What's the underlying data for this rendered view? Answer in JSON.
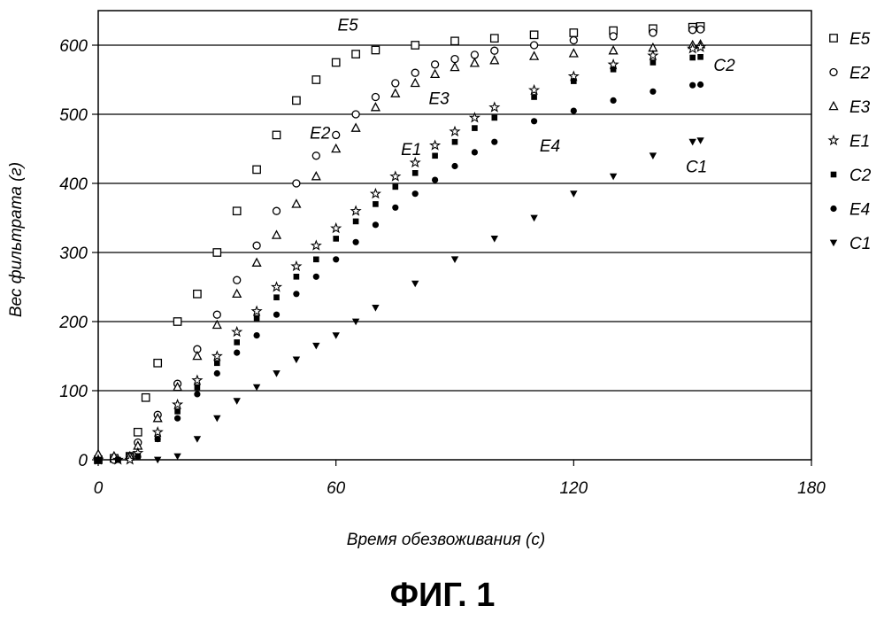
{
  "figure": {
    "caption": "ФИГ. 1"
  },
  "chart_data": {
    "type": "scatter",
    "title": "",
    "xlabel": "Время обезвоживания (с)",
    "ylabel": "Вес фильтрата (г)",
    "xlim": [
      0,
      180
    ],
    "ylim": [
      0,
      650
    ],
    "x_ticks": [
      "0",
      "60",
      "120",
      "180"
    ],
    "y_ticks": [
      "0",
      "100",
      "200",
      "300",
      "400",
      "500",
      "600"
    ],
    "grid": "horizontal",
    "legend_position": "right",
    "series": [
      {
        "name": "E5",
        "marker": "square-open",
        "color": "#000000",
        "points": [
          [
            0,
            0
          ],
          [
            4,
            2
          ],
          [
            8,
            5
          ],
          [
            10,
            40
          ],
          [
            12,
            90
          ],
          [
            15,
            140
          ],
          [
            20,
            200
          ],
          [
            25,
            240
          ],
          [
            30,
            300
          ],
          [
            35,
            360
          ],
          [
            40,
            420
          ],
          [
            45,
            470
          ],
          [
            50,
            520
          ],
          [
            55,
            550
          ],
          [
            60,
            575
          ],
          [
            65,
            587
          ],
          [
            70,
            593
          ],
          [
            80,
            600
          ],
          [
            90,
            606
          ],
          [
            100,
            610
          ],
          [
            110,
            615
          ],
          [
            120,
            618
          ],
          [
            130,
            621
          ],
          [
            140,
            624
          ],
          [
            150,
            626
          ],
          [
            152,
            627
          ]
        ]
      },
      {
        "name": "E2",
        "marker": "circle-open",
        "color": "#000000",
        "points": [
          [
            0,
            0
          ],
          [
            4,
            0
          ],
          [
            8,
            5
          ],
          [
            10,
            25
          ],
          [
            15,
            65
          ],
          [
            20,
            110
          ],
          [
            25,
            160
          ],
          [
            30,
            210
          ],
          [
            35,
            260
          ],
          [
            40,
            310
          ],
          [
            45,
            360
          ],
          [
            50,
            400
          ],
          [
            55,
            440
          ],
          [
            60,
            470
          ],
          [
            65,
            500
          ],
          [
            70,
            525
          ],
          [
            75,
            545
          ],
          [
            80,
            560
          ],
          [
            85,
            572
          ],
          [
            90,
            580
          ],
          [
            95,
            586
          ],
          [
            100,
            592
          ],
          [
            110,
            600
          ],
          [
            120,
            607
          ],
          [
            130,
            613
          ],
          [
            140,
            618
          ],
          [
            150,
            622
          ],
          [
            152,
            623
          ]
        ]
      },
      {
        "name": "E3",
        "marker": "triangle-open",
        "color": "#000000",
        "points": [
          [
            0,
            8
          ],
          [
            4,
            5
          ],
          [
            8,
            5
          ],
          [
            10,
            20
          ],
          [
            15,
            60
          ],
          [
            20,
            105
          ],
          [
            25,
            150
          ],
          [
            30,
            195
          ],
          [
            35,
            240
          ],
          [
            40,
            285
          ],
          [
            45,
            325
          ],
          [
            50,
            370
          ],
          [
            55,
            410
          ],
          [
            60,
            450
          ],
          [
            65,
            480
          ],
          [
            70,
            510
          ],
          [
            75,
            530
          ],
          [
            80,
            545
          ],
          [
            85,
            558
          ],
          [
            90,
            568
          ],
          [
            95,
            574
          ],
          [
            100,
            578
          ],
          [
            110,
            584
          ],
          [
            120,
            588
          ],
          [
            130,
            592
          ],
          [
            140,
            596
          ],
          [
            150,
            600
          ],
          [
            152,
            601
          ]
        ]
      },
      {
        "name": "E1",
        "marker": "star-open",
        "color": "#000000",
        "points": [
          [
            0,
            0
          ],
          [
            5,
            0
          ],
          [
            8,
            0
          ],
          [
            10,
            10
          ],
          [
            15,
            40
          ],
          [
            20,
            80
          ],
          [
            25,
            115
          ],
          [
            30,
            150
          ],
          [
            35,
            185
          ],
          [
            40,
            215
          ],
          [
            45,
            250
          ],
          [
            50,
            280
          ],
          [
            55,
            310
          ],
          [
            60,
            335
          ],
          [
            65,
            360
          ],
          [
            70,
            385
          ],
          [
            75,
            410
          ],
          [
            80,
            430
          ],
          [
            85,
            455
          ],
          [
            90,
            475
          ],
          [
            95,
            495
          ],
          [
            100,
            510
          ],
          [
            110,
            535
          ],
          [
            120,
            555
          ],
          [
            130,
            572
          ],
          [
            140,
            585
          ],
          [
            150,
            595
          ],
          [
            152,
            597
          ]
        ]
      },
      {
        "name": "C2",
        "marker": "square-filled",
        "color": "#000000",
        "points": [
          [
            0,
            0
          ],
          [
            5,
            0
          ],
          [
            10,
            5
          ],
          [
            15,
            30
          ],
          [
            20,
            70
          ],
          [
            25,
            105
          ],
          [
            30,
            140
          ],
          [
            35,
            170
          ],
          [
            40,
            205
          ],
          [
            45,
            235
          ],
          [
            50,
            265
          ],
          [
            55,
            290
          ],
          [
            60,
            320
          ],
          [
            65,
            345
          ],
          [
            70,
            370
          ],
          [
            75,
            395
          ],
          [
            80,
            415
          ],
          [
            85,
            440
          ],
          [
            90,
            460
          ],
          [
            95,
            480
          ],
          [
            100,
            495
          ],
          [
            110,
            525
          ],
          [
            120,
            548
          ],
          [
            130,
            565
          ],
          [
            140,
            575
          ],
          [
            150,
            582
          ],
          [
            152,
            583
          ]
        ]
      },
      {
        "name": "E4",
        "marker": "circle-filled",
        "color": "#000000",
        "points": [
          [
            0,
            0
          ],
          [
            5,
            0
          ],
          [
            10,
            5
          ],
          [
            15,
            30
          ],
          [
            20,
            60
          ],
          [
            25,
            95
          ],
          [
            30,
            125
          ],
          [
            35,
            155
          ],
          [
            40,
            180
          ],
          [
            45,
            210
          ],
          [
            50,
            240
          ],
          [
            55,
            265
          ],
          [
            60,
            290
          ],
          [
            65,
            315
          ],
          [
            70,
            340
          ],
          [
            75,
            365
          ],
          [
            80,
            385
          ],
          [
            85,
            405
          ],
          [
            90,
            425
          ],
          [
            95,
            445
          ],
          [
            100,
            460
          ],
          [
            110,
            490
          ],
          [
            120,
            505
          ],
          [
            130,
            520
          ],
          [
            140,
            533
          ],
          [
            150,
            542
          ],
          [
            152,
            543
          ]
        ]
      },
      {
        "name": "C1",
        "marker": "triangle-down-filled",
        "color": "#000000",
        "points": [
          [
            15,
            0
          ],
          [
            20,
            5
          ],
          [
            25,
            30
          ],
          [
            30,
            60
          ],
          [
            35,
            85
          ],
          [
            40,
            105
          ],
          [
            45,
            125
          ],
          [
            50,
            145
          ],
          [
            55,
            165
          ],
          [
            60,
            180
          ],
          [
            65,
            200
          ],
          [
            70,
            220
          ],
          [
            80,
            255
          ],
          [
            90,
            290
          ],
          [
            100,
            320
          ],
          [
            110,
            350
          ],
          [
            120,
            385
          ],
          [
            130,
            410
          ],
          [
            140,
            440
          ],
          [
            150,
            460
          ],
          [
            152,
            462
          ]
        ]
      }
    ],
    "annotations": [
      {
        "text": "E5",
        "x": 63,
        "y": 630
      },
      {
        "text": "E2",
        "x": 56,
        "y": 474
      },
      {
        "text": "E3",
        "x": 86,
        "y": 524
      },
      {
        "text": "E1",
        "x": 79,
        "y": 450
      },
      {
        "text": "E4",
        "x": 114,
        "y": 455
      },
      {
        "text": "C2",
        "x": 158,
        "y": 572
      },
      {
        "text": "C1",
        "x": 151,
        "y": 425
      }
    ]
  }
}
